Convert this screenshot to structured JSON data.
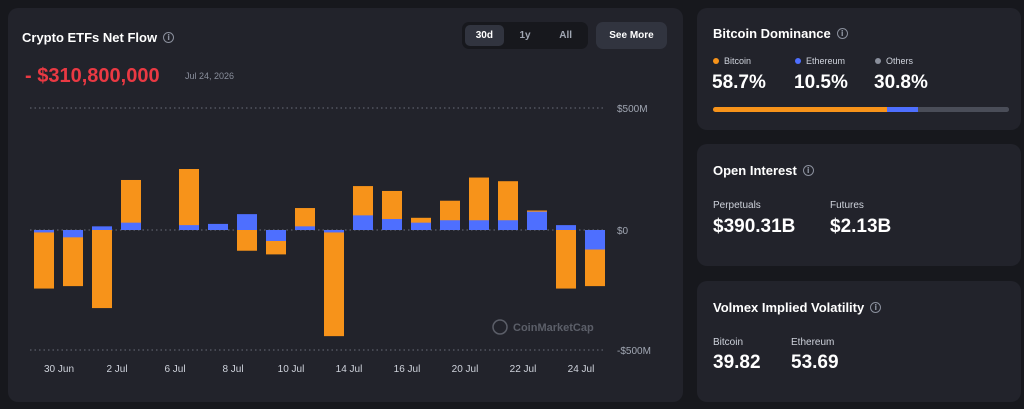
{
  "net_flow": {
    "title": "Crypto ETFs Net Flow",
    "ranges": [
      "30d",
      "1y",
      "All"
    ],
    "active_range": "30d",
    "see_more_label": "See More",
    "value": "- $310,800,000",
    "date": "Jul 24, 2026",
    "watermark": "CoinMarketCap"
  },
  "chart_data": {
    "type": "bar",
    "stacked": true,
    "x_ticks": [
      "30 Jun",
      "2 Jul",
      "6 Jul",
      "8 Jul",
      "10 Jul",
      "14 Jul",
      "16 Jul",
      "20 Jul",
      "22 Jul",
      "24 Jul"
    ],
    "y_ticks": [
      "$500M",
      "$0",
      "-$500M"
    ],
    "ylim": [
      -500,
      500
    ],
    "y_unit": "$M",
    "colors": {
      "bitcoin": "#f7931a",
      "ethereum": "#4e6fff"
    },
    "bars": [
      {
        "btc": -240,
        "eth": -10
      },
      {
        "btc": -230,
        "eth": -30
      },
      {
        "btc": -320,
        "eth": 15
      },
      {
        "btc": 205,
        "eth": 30
      },
      {
        "btc": 0,
        "eth": 0
      },
      {
        "btc": 250,
        "eth": 20
      },
      {
        "btc": 20,
        "eth": 25
      },
      {
        "btc": -85,
        "eth": 65
      },
      {
        "btc": -100,
        "eth": -45
      },
      {
        "btc": 90,
        "eth": 15
      },
      {
        "btc": -435,
        "eth": -10
      },
      {
        "btc": 180,
        "eth": 60
      },
      {
        "btc": 160,
        "eth": 45
      },
      {
        "btc": 50,
        "eth": 30
      },
      {
        "btc": 120,
        "eth": 40
      },
      {
        "btc": 215,
        "eth": 40
      },
      {
        "btc": 200,
        "eth": 40
      },
      {
        "btc": 80,
        "eth": 75
      },
      {
        "btc": -240,
        "eth": 20
      },
      {
        "btc": -230,
        "eth": -80
      }
    ]
  },
  "dominance": {
    "title": "Bitcoin Dominance",
    "items": [
      {
        "label": "Bitcoin",
        "value": "58.7%",
        "percent": 58.7,
        "color": "#f7931a"
      },
      {
        "label": "Ethereum",
        "value": "10.5%",
        "percent": 10.5,
        "color": "#4e6fff"
      },
      {
        "label": "Others",
        "value": "30.8%",
        "percent": 30.8,
        "color": "#8a8f9c"
      }
    ]
  },
  "open_interest": {
    "title": "Open Interest",
    "perpetuals_label": "Perpetuals",
    "perpetuals_value": "$390.31B",
    "futures_label": "Futures",
    "futures_value": "$2.13B"
  },
  "volatility": {
    "title": "Volmex Implied Volatility",
    "bitcoin_label": "Bitcoin",
    "bitcoin_value": "39.82",
    "ethereum_label": "Ethereum",
    "ethereum_value": "53.69"
  }
}
